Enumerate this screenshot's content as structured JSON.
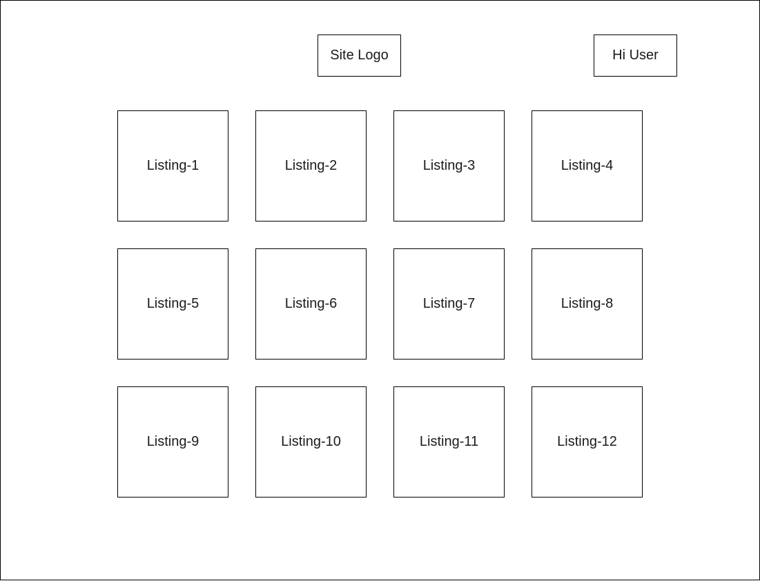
{
  "header": {
    "site_logo_label": "Site Logo",
    "user_greeting": "Hi User"
  },
  "listings": [
    {
      "label": "Listing-1"
    },
    {
      "label": "Listing-2"
    },
    {
      "label": "Listing-3"
    },
    {
      "label": "Listing-4"
    },
    {
      "label": "Listing-5"
    },
    {
      "label": "Listing-6"
    },
    {
      "label": "Listing-7"
    },
    {
      "label": "Listing-8"
    },
    {
      "label": "Listing-9"
    },
    {
      "label": "Listing-10"
    },
    {
      "label": "Listing-11"
    },
    {
      "label": "Listing-12"
    }
  ],
  "colors": {
    "border": "#000000",
    "background": "#ffffff",
    "text": "#1a1a1a"
  }
}
